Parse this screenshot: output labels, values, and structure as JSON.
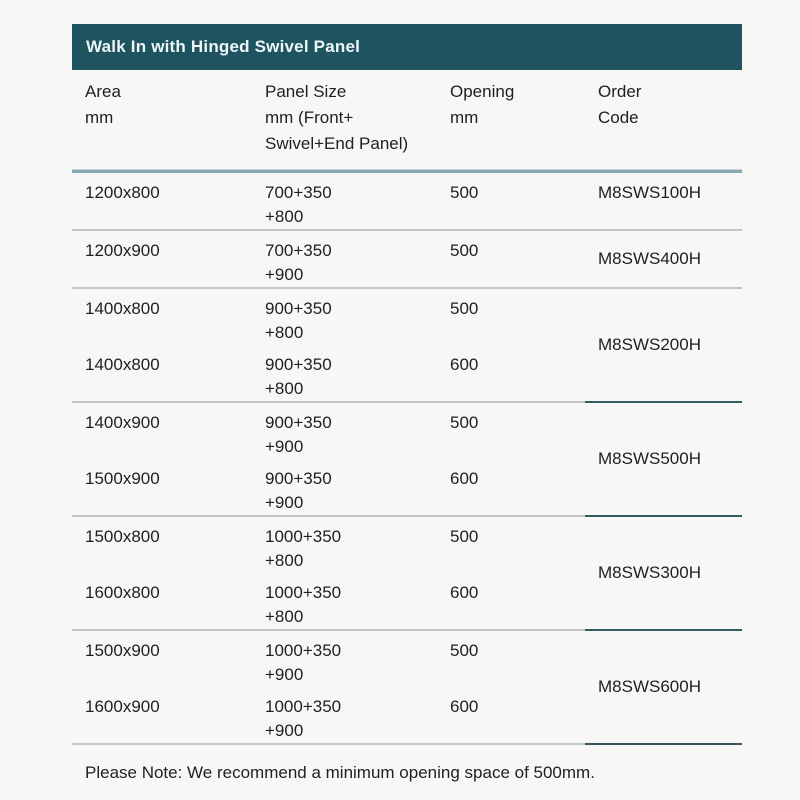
{
  "colors": {
    "page_background": "#f7f7f5",
    "title_bar_background": "#1d5460",
    "title_bar_text": "#eef5f6",
    "header_rule": "#86a9b1",
    "row_separator": "#c6c6c4",
    "separator_accent": "#355a60",
    "body_text": "#1f1f1d"
  },
  "table": {
    "title": "Walk In with Hinged Swivel Panel",
    "columns": {
      "area": {
        "line1": "Area",
        "line2": "mm"
      },
      "panel_size": {
        "line1": "Panel Size",
        "line2": "mm (Front+",
        "line3": "Swivel+End Panel)"
      },
      "opening": {
        "line1": "Opening",
        "line2": "mm"
      },
      "order_code": {
        "line1": "Order",
        "line2": "Code"
      }
    },
    "groups": [
      {
        "code": "M8SWS100H",
        "rows": [
          {
            "area": "1200x800",
            "panel_line1": "700+350",
            "panel_line2": "+800",
            "opening": "500"
          }
        ]
      },
      {
        "code": "M8SWS400H",
        "rows": [
          {
            "area": "1200x900",
            "panel_line1": "700+350",
            "panel_line2": "+900",
            "opening": "500"
          }
        ]
      },
      {
        "code": "M8SWS200H",
        "rows": [
          {
            "area": "1400x800",
            "panel_line1": "900+350",
            "panel_line2": "+800",
            "opening": "500"
          },
          {
            "area": "1400x800",
            "panel_line1": "900+350",
            "panel_line2": "+800",
            "opening": "600"
          }
        ]
      },
      {
        "code": "M8SWS500H",
        "rows": [
          {
            "area": "1400x900",
            "panel_line1": "900+350",
            "panel_line2": "+900",
            "opening": "500"
          },
          {
            "area": "1500x900",
            "panel_line1": "900+350",
            "panel_line2": "+900",
            "opening": "600"
          }
        ]
      },
      {
        "code": "M8SWS300H",
        "rows": [
          {
            "area": "1500x800",
            "panel_line1": "1000+350",
            "panel_line2": "+800",
            "opening": "500"
          },
          {
            "area": "1600x800",
            "panel_line1": "1000+350",
            "panel_line2": "+800",
            "opening": "600"
          }
        ]
      },
      {
        "code": "M8SWS600H",
        "rows": [
          {
            "area": "1500x900",
            "panel_line1": "1000+350",
            "panel_line2": "+900",
            "opening": "500"
          },
          {
            "area": "1600x900",
            "panel_line1": "1000+350",
            "panel_line2": "+900",
            "opening": "600"
          }
        ]
      }
    ],
    "note": "Please Note: We recommend a minimum opening space of 500mm."
  }
}
